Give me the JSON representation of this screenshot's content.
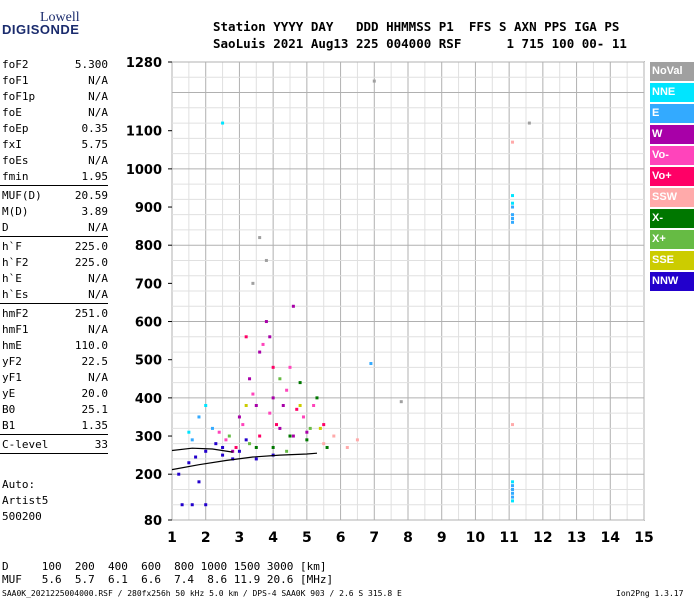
{
  "logo": {
    "line1": "Lowell",
    "line2": "DIGISONDE"
  },
  "header": {
    "line1": "Station YYYY DAY   DDD HHMMSS P1  FFS S AXN PPS IGA PS",
    "line2": "SaoLuis 2021 Aug13 225 004000 RSF      1 715 100 00- 11"
  },
  "params_group1": [
    {
      "label": "foF2",
      "value": "5.300"
    },
    {
      "label": "foF1",
      "value": "N/A"
    },
    {
      "label": "foF1p",
      "value": "N/A"
    },
    {
      "label": "foE",
      "value": "N/A"
    },
    {
      "label": "foEp",
      "value": "0.35"
    },
    {
      "label": "fxI",
      "value": "5.75"
    },
    {
      "label": "foEs",
      "value": "N/A"
    },
    {
      "label": "fmin",
      "value": "1.95"
    }
  ],
  "params_group2": [
    {
      "label": "MUF(D)",
      "value": "20.59"
    },
    {
      "label": "M(D)",
      "value": "3.89"
    },
    {
      "label": "D",
      "value": "N/A"
    }
  ],
  "params_group3": [
    {
      "label": "h`F",
      "value": "225.0"
    },
    {
      "label": "h`F2",
      "value": "225.0"
    },
    {
      "label": "h`E",
      "value": "N/A"
    },
    {
      "label": "h`Es",
      "value": "N/A"
    }
  ],
  "params_group4": [
    {
      "label": "hmF2",
      "value": "251.0"
    },
    {
      "label": "hmF1",
      "value": "N/A"
    },
    {
      "label": "hmE",
      "value": "110.0"
    },
    {
      "label": "yF2",
      "value": "22.5"
    },
    {
      "label": "yF1",
      "value": "N/A"
    },
    {
      "label": "yE",
      "value": "20.0"
    },
    {
      "label": "B0",
      "value": "25.1"
    },
    {
      "label": "B1",
      "value": "1.35"
    }
  ],
  "params_group5": [
    {
      "label": "C-level",
      "value": "33"
    }
  ],
  "auto": {
    "line1": "Auto:",
    "line2": "Artist5",
    "line3": "500200"
  },
  "legend": [
    {
      "label": "NoVal",
      "color": "#a0a0a0"
    },
    {
      "label": "NNE",
      "color": "#00e5ff"
    },
    {
      "label": "E",
      "color": "#33aaff"
    },
    {
      "label": "W",
      "color": "#a800a8"
    },
    {
      "label": "Vo-",
      "color": "#ff44bb"
    },
    {
      "label": "Vo+",
      "color": "#ff0066"
    },
    {
      "label": "SSW",
      "color": "#ffaaaa"
    },
    {
      "label": "X-",
      "color": "#007700"
    },
    {
      "label": "X+",
      "color": "#66bb44"
    },
    {
      "label": "SSE",
      "color": "#cccc00"
    },
    {
      "label": "NNW",
      "color": "#2200cc"
    }
  ],
  "bottom": {
    "d_row": "D     100  200  400  600  800 1000 1500 3000 [km]",
    "muf_row": "MUF   5.6  5.7  6.1  6.6  7.4  8.6 11.9 20.6 [MHz]"
  },
  "footer": {
    "left": "SAA0K_2021225004000.RSF / 280fx256h 50 kHz 5.0 km / DPS-4 SAA0K 903 / 2.6 S 315.8 E",
    "right": "Ion2Png 1.3.17"
  },
  "chart_data": {
    "type": "scatter",
    "title": "",
    "xlabel": "",
    "ylabel": "",
    "x_ticks": [
      "1",
      "2",
      "3",
      "4",
      "5",
      "6",
      "7",
      "8",
      "9",
      "10",
      "11",
      "12",
      "13",
      "14",
      "15"
    ],
    "y_ticks": [
      "80",
      "200",
      "300",
      "400",
      "500",
      "600",
      "700",
      "800",
      "900",
      "1000",
      "1100",
      "1280"
    ],
    "xlim": [
      1,
      15
    ],
    "ylim": [
      80,
      1280
    ],
    "grid": true,
    "legend_position": "right",
    "series": [
      {
        "name": "NNW",
        "color": "#2200cc",
        "points": [
          [
            1.5,
            230
          ],
          [
            1.7,
            245
          ],
          [
            2.0,
            260
          ],
          [
            2.3,
            280
          ],
          [
            2.5,
            250
          ],
          [
            2.8,
            240
          ],
          [
            1.2,
            200
          ],
          [
            1.8,
            180
          ],
          [
            3.0,
            260
          ],
          [
            3.5,
            240
          ],
          [
            1.3,
            120
          ],
          [
            1.6,
            120
          ],
          [
            2.0,
            120
          ],
          [
            2.5,
            270
          ],
          [
            3.2,
            290
          ],
          [
            4.0,
            250
          ]
        ]
      },
      {
        "name": "W",
        "color": "#a800a8",
        "points": [
          [
            3.0,
            350
          ],
          [
            3.3,
            450
          ],
          [
            3.6,
            520
          ],
          [
            4.0,
            400
          ],
          [
            4.3,
            380
          ],
          [
            4.6,
            300
          ],
          [
            3.8,
            600
          ],
          [
            4.6,
            640
          ],
          [
            3.5,
            380
          ],
          [
            4.2,
            320
          ],
          [
            5.0,
            310
          ],
          [
            2.8,
            260
          ],
          [
            3.9,
            560
          ]
        ]
      },
      {
        "name": "Vo-",
        "color": "#ff44bb",
        "points": [
          [
            2.6,
            290
          ],
          [
            3.1,
            330
          ],
          [
            3.4,
            410
          ],
          [
            3.9,
            360
          ],
          [
            4.4,
            420
          ],
          [
            5.2,
            380
          ],
          [
            3.7,
            540
          ],
          [
            4.5,
            480
          ],
          [
            2.4,
            310
          ],
          [
            4.9,
            350
          ]
        ]
      },
      {
        "name": "Vo+",
        "color": "#ff0066",
        "points": [
          [
            2.9,
            270
          ],
          [
            3.6,
            300
          ],
          [
            4.1,
            330
          ],
          [
            4.7,
            370
          ],
          [
            3.2,
            560
          ],
          [
            5.5,
            330
          ],
          [
            4.0,
            480
          ]
        ]
      },
      {
        "name": "X-",
        "color": "#007700",
        "points": [
          [
            4.0,
            270
          ],
          [
            4.5,
            300
          ],
          [
            5.0,
            290
          ],
          [
            5.6,
            270
          ],
          [
            4.8,
            440
          ],
          [
            3.5,
            270
          ],
          [
            5.3,
            400
          ]
        ]
      },
      {
        "name": "X+",
        "color": "#66bb44",
        "points": [
          [
            3.3,
            280
          ],
          [
            4.4,
            260
          ],
          [
            5.1,
            320
          ],
          [
            4.2,
            450
          ],
          [
            2.7,
            300
          ]
        ]
      },
      {
        "name": "E",
        "color": "#33aaff",
        "points": [
          [
            1.8,
            350
          ],
          [
            2.2,
            320
          ],
          [
            1.6,
            290
          ],
          [
            11.1,
            880
          ],
          [
            11.1,
            900
          ],
          [
            11.1,
            860
          ],
          [
            11.1,
            870
          ],
          [
            11.1,
            150
          ],
          [
            11.1,
            160
          ],
          [
            11.1,
            170
          ],
          [
            11.1,
            140
          ],
          [
            6.9,
            490
          ]
        ]
      },
      {
        "name": "NNE",
        "color": "#00e5ff",
        "points": [
          [
            2.0,
            380
          ],
          [
            1.5,
            310
          ],
          [
            11.1,
            910
          ],
          [
            11.1,
            930
          ],
          [
            11.1,
            130
          ],
          [
            11.1,
            180
          ],
          [
            2.5,
            1120
          ]
        ]
      },
      {
        "name": "SSW",
        "color": "#ffaaaa",
        "points": [
          [
            5.5,
            280
          ],
          [
            6.2,
            270
          ],
          [
            5.8,
            300
          ],
          [
            11.1,
            1070
          ],
          [
            11.1,
            330
          ],
          [
            6.5,
            290
          ]
        ]
      },
      {
        "name": "SSE",
        "color": "#cccc00",
        "points": [
          [
            4.8,
            380
          ],
          [
            3.2,
            380
          ],
          [
            5.4,
            320
          ]
        ]
      },
      {
        "name": "NoVal",
        "color": "#a0a0a0",
        "points": [
          [
            3.4,
            700
          ],
          [
            3.6,
            820
          ],
          [
            3.8,
            760
          ],
          [
            11.6,
            1120
          ],
          [
            7.0,
            1230
          ],
          [
            7.8,
            390
          ]
        ]
      }
    ],
    "profile_lines": [
      {
        "points": [
          [
            1.0,
            212
          ],
          [
            1.8,
            225
          ],
          [
            2.6,
            236
          ],
          [
            3.4,
            245
          ],
          [
            4.2,
            250
          ],
          [
            5.0,
            253
          ],
          [
            5.3,
            255
          ]
        ]
      },
      {
        "points": [
          [
            1.0,
            262
          ],
          [
            1.6,
            268
          ],
          [
            2.2,
            266
          ],
          [
            2.8,
            258
          ]
        ]
      }
    ]
  }
}
